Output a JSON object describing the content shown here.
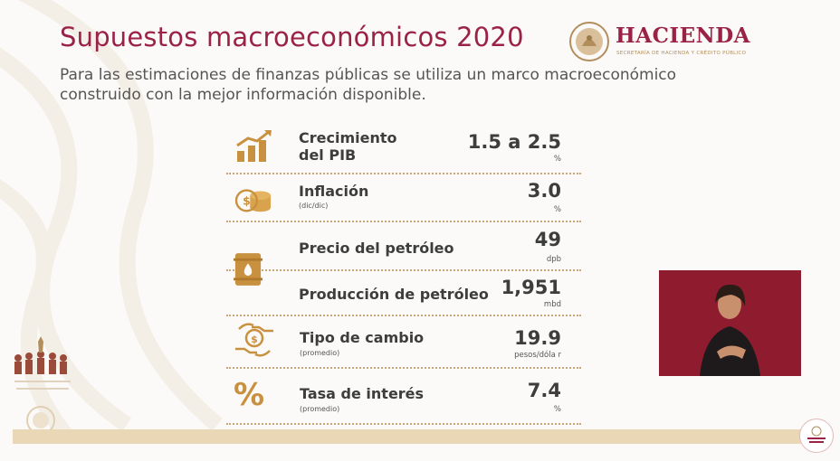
{
  "header": {
    "title": "Supuestos macroeconómicos 2020",
    "subtitle_line1": "Para las estimaciones de finanzas públicas se utiliza un marco macroeconómico",
    "subtitle_line2": "construido con la mejor información disponible."
  },
  "logo": {
    "brand": "HACIENDA",
    "tagline": "SECRETARÍA DE HACIENDA Y CRÉDITO PÚBLICO"
  },
  "indicators": [
    {
      "label_line1": "Crecimiento",
      "label_line2": "del PIB",
      "value": "1.5 a 2.5",
      "unit": "%",
      "icon": "growth-chart-icon"
    },
    {
      "label_line1": "Inflación",
      "note": "(dic/dic)",
      "value": "3.0",
      "unit": "%",
      "icon": "coins-icon"
    },
    {
      "label_line1": "Precio del petróleo",
      "value": "49",
      "unit": "dpb",
      "icon": "oil-barrel-icon"
    },
    {
      "label_line1": "Producción de petróleo",
      "value": "1,951",
      "unit": "mbd",
      "icon": "oil-barrel-icon"
    },
    {
      "label_line1": "Tipo de cambio",
      "note": "(promedio)",
      "value": "19.9",
      "unit": "pesos/dóla r",
      "icon": "currency-exchange-icon"
    },
    {
      "label_line1": "Tasa de interés",
      "note": "(promedio)",
      "value": "7.4",
      "unit": "%",
      "icon": "percent-icon"
    }
  ],
  "colors": {
    "brand_red": "#9b2247",
    "gold": "#b38e5d",
    "video_bg": "#8f1c2e"
  }
}
